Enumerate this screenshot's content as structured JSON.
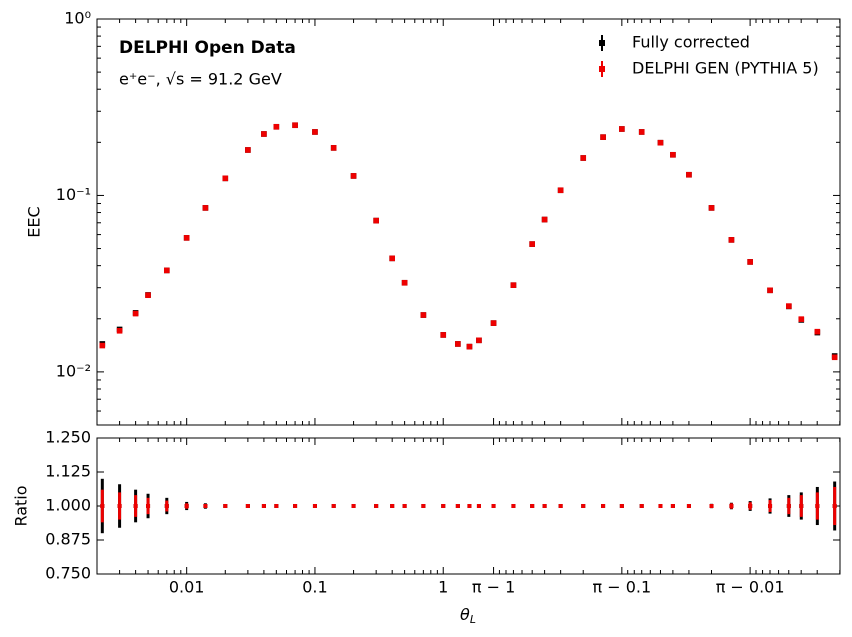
{
  "chart_data": [
    {
      "type": "scatter",
      "ylabel": "EEC",
      "log_y": true,
      "annotations": [
        "DELPHI Open Data",
        "e⁺e⁻, √s = 91.2 GeV"
      ],
      "legend": "upper right",
      "ylim": [
        0.005,
        1
      ],
      "yticks": [
        {
          "value": 1,
          "label": "10⁰"
        },
        {
          "value": 0.1,
          "label": "10⁻¹"
        },
        {
          "value": 0.01,
          "label": "10⁻²"
        }
      ],
      "x": [
        0.0022,
        0.003,
        0.004,
        0.005,
        0.007,
        0.01,
        0.014,
        0.02,
        0.03,
        0.04,
        0.05,
        0.07,
        0.1,
        0.14,
        0.2,
        0.3,
        0.4,
        0.5,
        0.7,
        1,
        1.3,
        1.6,
        1.8416,
        2.1416,
        2.4416,
        2.6416,
        2.7416,
        2.8416,
        2.9416,
        3.0016,
        3.0416,
        3.0716,
        3.0916,
        3.1016,
        3.1116,
        3.1216,
        3.1276,
        3.1316,
        3.1346,
        3.1366,
        3.1376,
        3.1386,
        3.1394
      ],
      "series": [
        {
          "name": "Fully corrected",
          "color": "#000000",
          "values": [
            0.0144,
            0.0174,
            0.0216,
            0.0273,
            0.0376,
            0.0575,
            0.085,
            0.125,
            0.181,
            0.223,
            0.245,
            0.25,
            0.229,
            0.186,
            0.129,
            0.072,
            0.044,
            0.032,
            0.021,
            0.0162,
            0.0144,
            0.0139,
            0.0151,
            0.0189,
            0.031,
            0.053,
            0.073,
            0.107,
            0.163,
            0.214,
            0.238,
            0.229,
            0.199,
            0.17,
            0.131,
            0.085,
            0.056,
            0.042,
            0.029,
            0.0235,
            0.0197,
            0.0167,
            0.0123
          ]
        },
        {
          "name": "DELPHI GEN (PYTHIA 5)",
          "color": "#ee0000",
          "values": [
            0.0141,
            0.0171,
            0.0214,
            0.0272,
            0.0376,
            0.0575,
            0.085,
            0.125,
            0.181,
            0.223,
            0.245,
            0.25,
            0.229,
            0.186,
            0.129,
            0.072,
            0.044,
            0.032,
            0.021,
            0.0162,
            0.0144,
            0.0139,
            0.0151,
            0.0189,
            0.031,
            0.053,
            0.073,
            0.107,
            0.163,
            0.214,
            0.238,
            0.229,
            0.199,
            0.17,
            0.131,
            0.085,
            0.056,
            0.042,
            0.029,
            0.0236,
            0.0199,
            0.0169,
            0.0121
          ]
        }
      ]
    },
    {
      "type": "errorbar",
      "ylabel": "Ratio",
      "xlabel": {
        "symbol": "θ",
        "subscript": "L"
      },
      "xlim": [
        0.002,
        3.1396
      ],
      "xticks": [
        0.01,
        0.1,
        1,
        {
          "value": 2.14159,
          "label": "π − 1"
        },
        {
          "value": 3.04159,
          "label": "π − 0.1"
        },
        {
          "value": 3.13159,
          "label": "π − 0.01"
        }
      ],
      "ylim": [
        0.75,
        1.25
      ],
      "yticks": [
        {
          "value": 0.75,
          "label": "0.750"
        },
        0.875,
        {
          "value": 1,
          "label": "1.000"
        },
        1.125,
        {
          "value": 1.25,
          "label": "1.250"
        }
      ],
      "series": [
        {
          "name": "Fully corrected",
          "color": "#000000",
          "values": [
            1,
            1,
            1,
            1,
            1,
            1,
            1,
            1,
            1,
            1,
            1,
            1,
            1,
            1,
            1,
            1,
            1,
            1,
            1,
            1,
            1,
            1,
            1,
            1,
            1,
            1,
            1,
            1,
            1,
            1,
            1,
            1,
            1,
            1,
            1,
            1,
            1,
            1,
            1,
            1,
            1,
            1,
            1
          ],
          "errors": [
            0.1,
            0.08,
            0.06,
            0.045,
            0.03,
            0.015,
            0.01,
            0.006,
            0.004,
            0.003,
            0.003,
            0.003,
            0.003,
            0.003,
            0.003,
            0.003,
            0.003,
            0.003,
            0.003,
            0.003,
            0.003,
            0.003,
            0.003,
            0.003,
            0.003,
            0.003,
            0.003,
            0.003,
            0.003,
            0.003,
            0.003,
            0.003,
            0.003,
            0.003,
            0.005,
            0.008,
            0.012,
            0.018,
            0.028,
            0.04,
            0.05,
            0.07,
            0.09
          ]
        },
        {
          "name": "DELPHI GEN (PYTHIA 5)",
          "color": "#ee0000",
          "values": [
            1,
            1,
            1,
            1,
            1,
            1,
            1,
            1,
            1,
            1,
            1,
            1,
            1,
            1,
            1,
            1,
            1,
            1,
            1,
            1,
            1,
            1,
            1,
            1,
            1,
            1,
            1,
            1,
            1,
            1,
            1,
            1,
            1,
            1,
            1,
            1,
            1,
            1,
            1,
            1,
            1,
            1,
            1
          ],
          "errors": [
            0.06,
            0.05,
            0.04,
            0.03,
            0.02,
            0.01,
            0.007,
            0.004,
            0.003,
            0.002,
            0.002,
            0.002,
            0.002,
            0.002,
            0.002,
            0.002,
            0.002,
            0.002,
            0.002,
            0.002,
            0.002,
            0.002,
            0.002,
            0.002,
            0.002,
            0.002,
            0.002,
            0.002,
            0.002,
            0.002,
            0.002,
            0.002,
            0.002,
            0.002,
            0.004,
            0.006,
            0.01,
            0.014,
            0.022,
            0.03,
            0.04,
            0.05,
            0.07
          ]
        }
      ]
    }
  ]
}
